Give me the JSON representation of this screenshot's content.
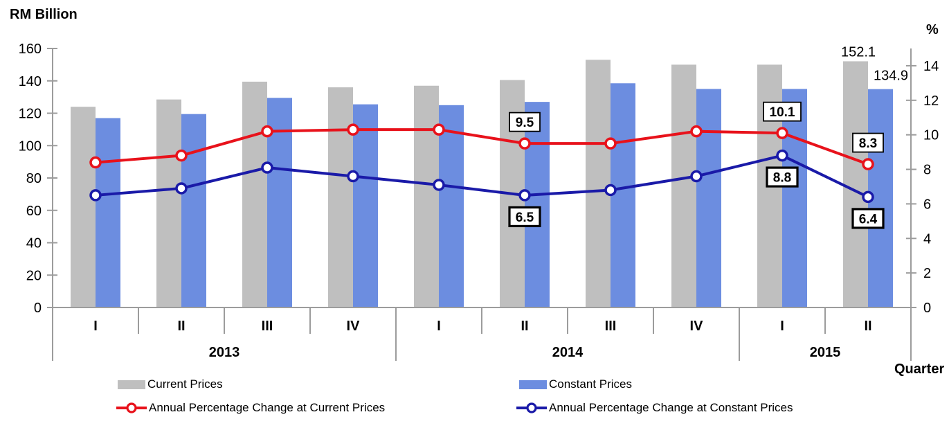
{
  "chart_data": {
    "type": "bar",
    "subtype": "combo-bar-line-dual-axis",
    "left_axis": {
      "title": "RM Billion",
      "min": 0,
      "max": 160,
      "step": 20
    },
    "right_axis": {
      "title": "%",
      "min": 0,
      "max": 15,
      "step": 2,
      "top_label": 14
    },
    "xlabel": "Quarter",
    "grid": "off",
    "legend_position": "bottom",
    "categories": [
      "I",
      "II",
      "III",
      "IV",
      "I",
      "II",
      "III",
      "IV",
      "I",
      "II"
    ],
    "year_groups": [
      {
        "label": "2013",
        "span": 4
      },
      {
        "label": "2014",
        "span": 4
      },
      {
        "label": "2015",
        "span": 2
      }
    ],
    "series": [
      {
        "name": "Current Prices",
        "type": "bar",
        "axis": "left",
        "color": "#BFBFBF",
        "values": [
          124,
          128.5,
          139.5,
          136,
          137,
          140.5,
          153,
          150,
          150,
          152.1
        ],
        "point_labels": {
          "9": "152.1"
        }
      },
      {
        "name": "Constant Prices",
        "type": "bar",
        "axis": "left",
        "color": "#6C8DE0",
        "values": [
          117,
          119.5,
          129.5,
          125.5,
          125,
          127,
          138.5,
          135,
          135,
          134.9
        ],
        "point_labels": {
          "9": "134.9"
        }
      },
      {
        "name": "Annual Percentage Change at Current Prices",
        "type": "line",
        "axis": "right",
        "color": "#E8121B",
        "label_side": "above",
        "label_border": "thin",
        "values": [
          8.4,
          8.8,
          10.2,
          10.3,
          10.3,
          9.5,
          9.5,
          10.2,
          10.1,
          8.3
        ],
        "point_labels": {
          "5": "9.5",
          "8": "10.1",
          "9": "8.3"
        }
      },
      {
        "name": "Annual Percentage Change at Constant Prices",
        "type": "line",
        "axis": "right",
        "color": "#1A1AA8",
        "label_side": "below",
        "label_border": "thick",
        "values": [
          6.5,
          6.9,
          8.1,
          7.6,
          7.1,
          6.5,
          6.8,
          7.6,
          8.8,
          6.4
        ],
        "point_labels": {
          "5": "6.5",
          "8": "8.8",
          "9": "6.4"
        }
      }
    ]
  },
  "colors": {
    "axis": "#9C9C9C",
    "text": "#000000",
    "label_box_bg": "#FFFFFF",
    "label_box_border": "#000000"
  }
}
